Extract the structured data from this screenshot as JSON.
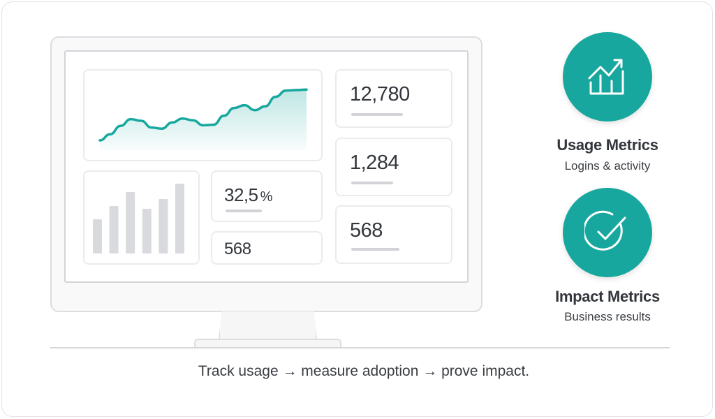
{
  "dashboard": {
    "stats": [
      "12,780",
      "1,284",
      "568"
    ],
    "percent_value": "32,5",
    "percent_unit": "%",
    "small_stat": "568",
    "line_series": [
      0.0,
      0.11,
      0.26,
      0.38,
      0.35,
      0.23,
      0.21,
      0.32,
      0.39,
      0.36,
      0.27,
      0.28,
      0.44,
      0.58,
      0.63,
      0.54,
      0.61,
      0.78,
      0.89,
      0.9,
      0.91
    ],
    "bar_series": [
      0.49,
      0.68,
      0.88,
      0.64,
      0.78,
      1.0
    ]
  },
  "metrics": [
    {
      "title": "Usage Metrics",
      "subtitle": "Logins & activity",
      "icon": "chart-trend-icon"
    },
    {
      "title": "Impact Metrics",
      "subtitle": "Business results",
      "icon": "check-circle-icon"
    }
  ],
  "footer": "Track usage → measure adoption → prove impact.",
  "colors": {
    "accent": "#18a79e",
    "bar": "#d9dadd"
  }
}
